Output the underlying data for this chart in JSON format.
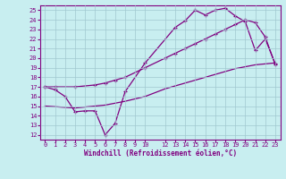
{
  "bg_color": "#c8eef0",
  "grid_color": "#a0c8d0",
  "line_color": "#800080",
  "xlabel": "Windchill (Refroidissement éolien,°C)",
  "ylim": [
    11.5,
    25.5
  ],
  "xlim": [
    -0.5,
    23.5
  ],
  "yticks": [
    12,
    13,
    14,
    15,
    16,
    17,
    18,
    19,
    20,
    21,
    22,
    23,
    24,
    25
  ],
  "xticks": [
    0,
    1,
    2,
    3,
    4,
    5,
    6,
    7,
    8,
    9,
    10,
    12,
    13,
    14,
    15,
    16,
    17,
    18,
    19,
    20,
    21,
    22,
    23
  ],
  "line1_x": [
    0,
    1,
    2,
    3,
    4,
    5,
    6,
    7,
    8,
    10,
    13,
    14,
    15,
    16,
    17,
    18,
    19,
    20,
    21,
    22,
    23
  ],
  "line1_y": [
    17.0,
    16.7,
    16.0,
    14.4,
    14.5,
    14.5,
    12.0,
    13.2,
    16.5,
    19.5,
    23.2,
    23.9,
    25.0,
    24.5,
    25.0,
    25.2,
    24.4,
    23.8,
    20.8,
    22.0,
    19.4
  ],
  "line2_x": [
    0,
    1,
    3,
    5,
    6,
    7,
    8,
    10,
    12,
    13,
    14,
    15,
    16,
    17,
    18,
    19,
    20,
    21,
    22,
    23
  ],
  "line2_y": [
    17.0,
    17.0,
    17.0,
    17.2,
    17.4,
    17.7,
    18.0,
    19.0,
    20.0,
    20.5,
    21.0,
    21.5,
    22.0,
    22.5,
    23.0,
    23.5,
    24.0,
    23.7,
    22.2,
    19.3
  ],
  "line3_x": [
    0,
    3,
    4,
    5,
    6,
    7,
    8,
    10,
    12,
    13,
    14,
    15,
    16,
    17,
    18,
    19,
    20,
    21,
    22,
    23
  ],
  "line3_y": [
    15.0,
    14.8,
    14.9,
    15.0,
    15.1,
    15.3,
    15.5,
    16.0,
    16.8,
    17.1,
    17.4,
    17.7,
    18.0,
    18.3,
    18.6,
    18.9,
    19.1,
    19.3,
    19.4,
    19.5
  ]
}
